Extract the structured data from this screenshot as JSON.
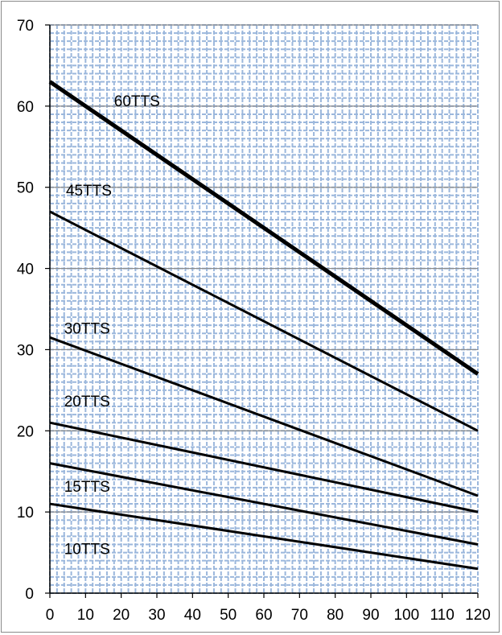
{
  "chart_data": {
    "type": "line",
    "title": "",
    "xlabel": "",
    "ylabel": "",
    "xlim": [
      0,
      120
    ],
    "ylim": [
      0,
      70
    ],
    "x_ticks": [
      "0",
      "10",
      "20",
      "30",
      "40",
      "50",
      "60",
      "70",
      "80",
      "90",
      "100",
      "110",
      "120"
    ],
    "y_ticks": [
      "0",
      "10",
      "20",
      "30",
      "40",
      "50",
      "60",
      "70"
    ],
    "grid": "major and minor, blue dashed minor grid",
    "colors": {
      "minor_grid": "#9bb7dc",
      "major_grid": "#8c8c8c",
      "line": "#000000",
      "axis": "#000000"
    },
    "series": [
      {
        "name": "60TTS",
        "x": [
          0,
          120
        ],
        "y": [
          63,
          27
        ],
        "label_at": [
          18,
          60
        ],
        "bold": true
      },
      {
        "name": "45TTS",
        "x": [
          0,
          120
        ],
        "y": [
          47,
          20
        ],
        "label_at": [
          4.5,
          49
        ]
      },
      {
        "name": "30TTS",
        "x": [
          0,
          120
        ],
        "y": [
          31.5,
          12
        ],
        "label_at": [
          4,
          32
        ]
      },
      {
        "name": "20TTS",
        "x": [
          0,
          120
        ],
        "y": [
          21,
          10
        ],
        "label_at": [
          4,
          23
        ]
      },
      {
        "name": "15TTS",
        "x": [
          0,
          120
        ],
        "y": [
          16,
          6
        ],
        "label_at": [
          4,
          12.5
        ]
      },
      {
        "name": "10TTS",
        "x": [
          0,
          120
        ],
        "y": [
          11,
          3
        ],
        "label_at": [
          4,
          4.8
        ]
      }
    ]
  }
}
